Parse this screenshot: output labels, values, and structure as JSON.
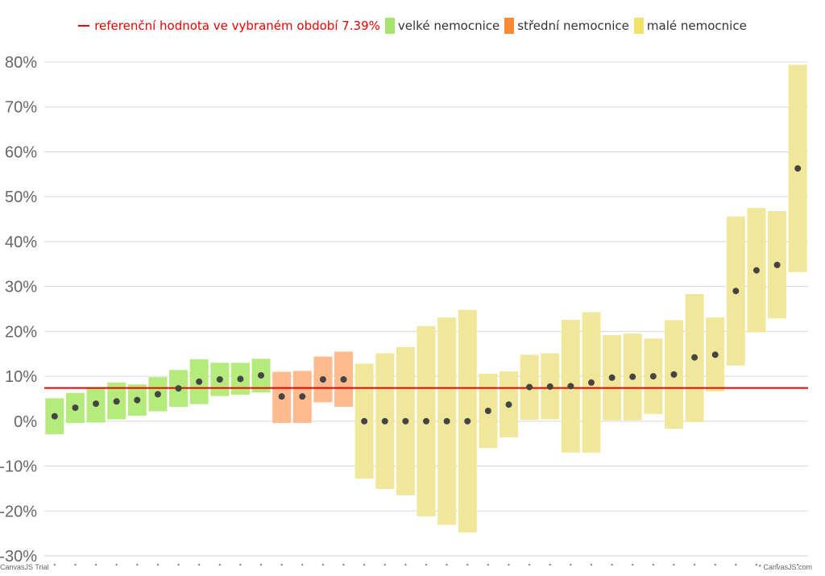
{
  "chart_data": {
    "type": "range-bar-with-points",
    "legend": [
      {
        "label": "referenční hodnota ve vybraném období 7.39%",
        "color": "#ee0000",
        "kind": "line"
      },
      {
        "label": "velké nemocnice",
        "color": "#a8e36d",
        "kind": "box"
      },
      {
        "label": "střední nemocnice",
        "color": "#ff8833",
        "kind": "box"
      },
      {
        "label": "malé nemocnice",
        "color": "#f2e26a",
        "kind": "box"
      }
    ],
    "group_colors": {
      "large": "#b5ea7d",
      "medium": "#ffbb8d",
      "small": "#f1e79a"
    },
    "reference_value": 7.39,
    "reference_color": "#ee0000",
    "ylim": [
      -30,
      80
    ],
    "y_ticks": [
      {
        "value": 80,
        "label": "80%"
      },
      {
        "value": 70,
        "label": "70%"
      },
      {
        "value": 60,
        "label": "60%"
      },
      {
        "value": 50,
        "label": "50%"
      },
      {
        "value": 40,
        "label": "40%"
      },
      {
        "value": 30,
        "label": "30%"
      },
      {
        "value": 20,
        "label": "20%"
      },
      {
        "value": 10,
        "label": "10%"
      },
      {
        "value": 0,
        "label": "0%"
      },
      {
        "value": -10,
        "label": "-10%"
      },
      {
        "value": -20,
        "label": "-20%"
      },
      {
        "value": -30,
        "label": "-30%"
      }
    ],
    "grid": true,
    "series": [
      {
        "group": "large",
        "low": -2.9,
        "high": 5.1,
        "value": 1.1
      },
      {
        "group": "large",
        "low": -0.4,
        "high": 6.3,
        "value": 3.0
      },
      {
        "group": "large",
        "low": -0.3,
        "high": 7.6,
        "value": 3.9
      },
      {
        "group": "large",
        "low": 0.4,
        "high": 8.6,
        "value": 4.4
      },
      {
        "group": "large",
        "low": 1.2,
        "high": 8.2,
        "value": 4.7
      },
      {
        "group": "large",
        "low": 2.2,
        "high": 9.8,
        "value": 6.0
      },
      {
        "group": "large",
        "low": 3.2,
        "high": 11.4,
        "value": 7.3
      },
      {
        "group": "large",
        "low": 3.8,
        "high": 13.8,
        "value": 8.8
      },
      {
        "group": "large",
        "low": 5.6,
        "high": 13.0,
        "value": 9.3
      },
      {
        "group": "large",
        "low": 5.9,
        "high": 13.0,
        "value": 9.4
      },
      {
        "group": "large",
        "low": 6.4,
        "high": 13.9,
        "value": 10.2
      },
      {
        "group": "medium",
        "low": -0.4,
        "high": 11.0,
        "value": 5.5
      },
      {
        "group": "medium",
        "low": -0.4,
        "high": 11.2,
        "value": 5.5
      },
      {
        "group": "medium",
        "low": 4.2,
        "high": 14.4,
        "value": 9.3
      },
      {
        "group": "medium",
        "low": 3.2,
        "high": 15.5,
        "value": 9.3
      },
      {
        "group": "small",
        "low": -12.8,
        "high": 12.8,
        "value": 0.0
      },
      {
        "group": "small",
        "low": -15.1,
        "high": 15.1,
        "value": 0.0
      },
      {
        "group": "small",
        "low": -16.5,
        "high": 16.5,
        "value": 0.0
      },
      {
        "group": "small",
        "low": -21.2,
        "high": 21.2,
        "value": 0.0
      },
      {
        "group": "small",
        "low": -23.1,
        "high": 23.1,
        "value": 0.0
      },
      {
        "group": "small",
        "low": -24.8,
        "high": 24.8,
        "value": 0.0
      },
      {
        "group": "small",
        "low": -6.0,
        "high": 10.6,
        "value": 2.3
      },
      {
        "group": "small",
        "low": -3.6,
        "high": 11.1,
        "value": 3.7
      },
      {
        "group": "small",
        "low": 0.3,
        "high": 14.8,
        "value": 7.6
      },
      {
        "group": "small",
        "low": 0.4,
        "high": 15.1,
        "value": 7.7
      },
      {
        "group": "small",
        "low": -7.0,
        "high": 22.6,
        "value": 7.8
      },
      {
        "group": "small",
        "low": -7.0,
        "high": 24.3,
        "value": 8.6
      },
      {
        "group": "small",
        "low": 0.2,
        "high": 19.2,
        "value": 9.7
      },
      {
        "group": "small",
        "low": 0.2,
        "high": 19.5,
        "value": 9.9
      },
      {
        "group": "small",
        "low": 1.6,
        "high": 18.4,
        "value": 10.0
      },
      {
        "group": "small",
        "low": -1.7,
        "high": 22.5,
        "value": 10.4
      },
      {
        "group": "small",
        "low": -0.2,
        "high": 28.3,
        "value": 14.2
      },
      {
        "group": "small",
        "low": 6.6,
        "high": 23.1,
        "value": 14.8
      },
      {
        "group": "small",
        "low": 12.4,
        "high": 45.6,
        "value": 29.0
      },
      {
        "group": "small",
        "low": 19.8,
        "high": 47.5,
        "value": 33.6
      },
      {
        "group": "small",
        "low": 22.9,
        "high": 46.8,
        "value": 34.8
      },
      {
        "group": "small",
        "low": 33.2,
        "high": 79.4,
        "value": 56.3
      }
    ]
  },
  "credits": {
    "left": "CanvasJS Trial",
    "right": "* CanvasJS.com"
  }
}
